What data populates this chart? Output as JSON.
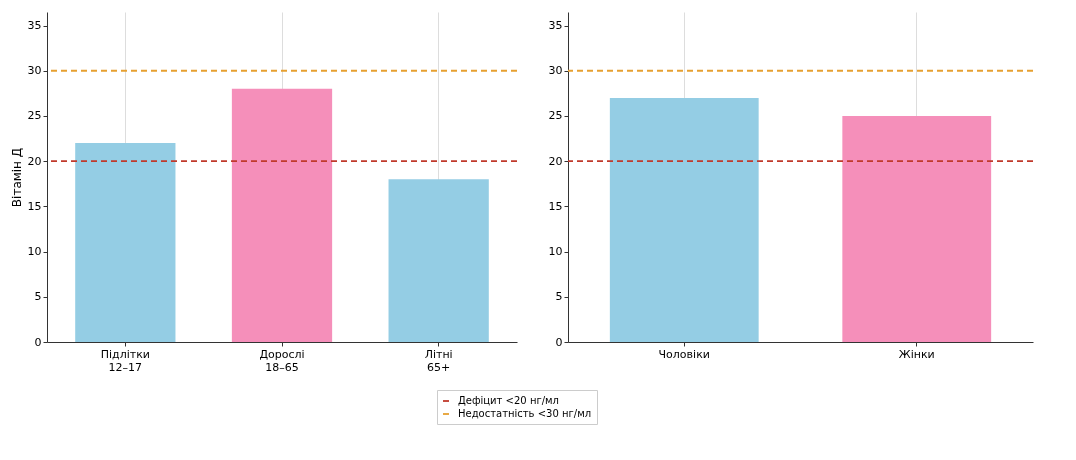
{
  "chart_data": [
    {
      "type": "bar",
      "ylabel": "Вітамін Д",
      "categories": [
        "Підлітки\n12–17",
        "Дорослі\n18–65",
        "Літні\n65+"
      ],
      "values": [
        22,
        28,
        18
      ],
      "colors": [
        "#94cde4",
        "#f58fba",
        "#94cde4"
      ],
      "ylim": [
        0,
        36.5
      ],
      "yticks": [
        0,
        5,
        10,
        15,
        20,
        25,
        30,
        35
      ],
      "grid": "x",
      "legend": "bottom",
      "ref_lines": [
        {
          "axis": "y",
          "value": 20,
          "label": "Дефіцит <20 нг/мл",
          "color": "#c0392b",
          "line_style": "dashed"
        },
        {
          "axis": "y",
          "value": 30,
          "label": "Недостатність <30 нг/мл",
          "color": "#e6a030",
          "line_style": "dashed"
        }
      ]
    },
    {
      "type": "bar",
      "categories": [
        "Чоловіки",
        "Жінки"
      ],
      "values": [
        27,
        25
      ],
      "colors": [
        "#94cde4",
        "#f58fba"
      ],
      "ylim": [
        0,
        36.5
      ],
      "yticks": [
        0,
        5,
        10,
        15,
        20,
        25,
        30,
        35
      ],
      "grid": "x",
      "ref_lines": [
        {
          "axis": "y",
          "value": 20,
          "color": "#c0392b",
          "line_style": "dashed"
        },
        {
          "axis": "y",
          "value": 30,
          "color": "#e6a030",
          "line_style": "dashed"
        }
      ]
    }
  ]
}
